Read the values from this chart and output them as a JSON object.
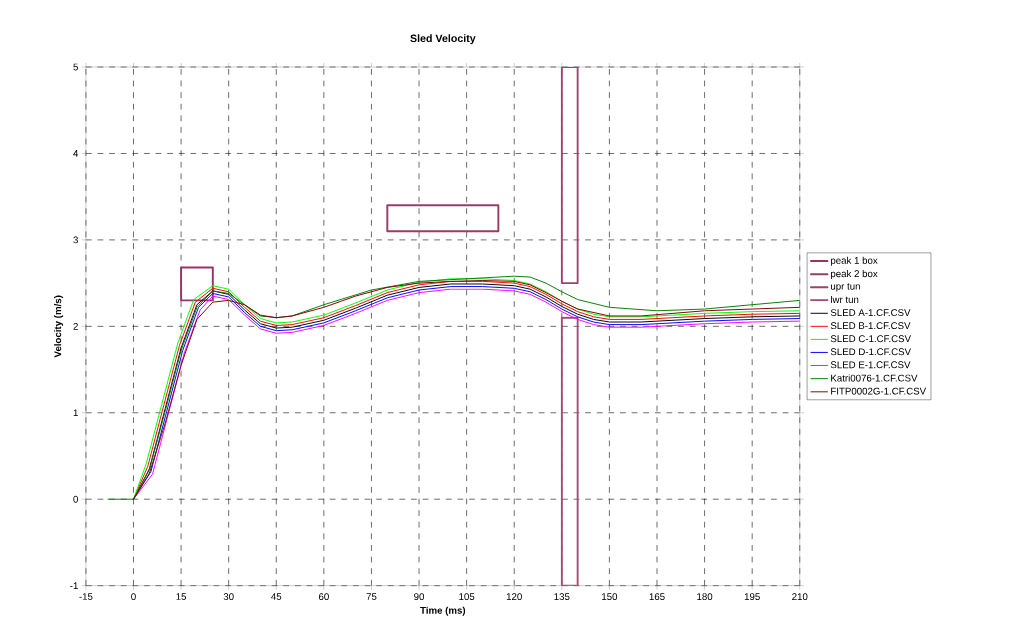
{
  "chart_data": {
    "type": "line",
    "title": "Sled Velocity",
    "xlabel": "Time (ms)",
    "ylabel": "Velocity (m/s)",
    "xlim": [
      -15,
      210
    ],
    "ylim": [
      -1,
      5
    ],
    "xticks": [
      -15,
      0,
      15,
      30,
      45,
      60,
      75,
      90,
      105,
      120,
      135,
      150,
      165,
      180,
      195,
      210
    ],
    "yticks": [
      -1,
      0,
      1,
      2,
      3,
      4,
      5
    ],
    "grid": true,
    "legend": "right",
    "series": [
      {
        "name": "peak 1 box",
        "color": "#993366",
        "x": [
          15,
          25,
          25,
          15,
          15,
          25
        ],
        "values": [
          2.3,
          2.3,
          2.68,
          2.68,
          2.3,
          2.3
        ]
      },
      {
        "name": "peak 2 box",
        "color": "#9c3b6a",
        "x": [
          80,
          115,
          115,
          80,
          80,
          115
        ],
        "values": [
          3.1,
          3.1,
          3.4,
          3.4,
          3.1,
          3.1
        ]
      },
      {
        "name": "upr tun",
        "color": "#a0426e",
        "x": [
          135,
          140,
          140,
          135,
          135,
          140
        ],
        "values": [
          2.5,
          2.5,
          5,
          5,
          2.5,
          2.5
        ]
      },
      {
        "name": "lwr tun",
        "color": "#a34a72",
        "x": [
          135,
          140,
          140,
          135,
          135,
          140
        ],
        "values": [
          -1,
          -1,
          2.1,
          2.1,
          -1,
          -1
        ]
      },
      {
        "name": "SLED A-1.CF.CSV",
        "color": "#000000",
        "x": [
          0,
          5,
          10,
          15,
          20,
          25,
          30,
          35,
          40,
          45,
          50,
          60,
          70,
          80,
          90,
          100,
          110,
          120,
          125,
          130,
          135,
          140,
          145,
          150,
          160,
          170,
          180,
          195,
          210
        ],
        "values": [
          0,
          0.35,
          1.05,
          1.75,
          2.25,
          2.41,
          2.37,
          2.19,
          2.03,
          1.98,
          1.99,
          2.07,
          2.21,
          2.36,
          2.45,
          2.49,
          2.49,
          2.47,
          2.43,
          2.34,
          2.23,
          2.14,
          2.08,
          2.05,
          2.05,
          2.07,
          2.09,
          2.11,
          2.12
        ]
      },
      {
        "name": "SLED B-1.CF.CSV",
        "color": "#ff0000",
        "x": [
          0,
          4.5,
          9.5,
          14.5,
          19.5,
          25,
          30,
          35,
          40,
          45,
          50,
          60,
          70,
          80,
          90,
          100,
          110,
          120,
          125,
          130,
          135,
          140,
          145,
          150,
          160,
          170,
          180,
          195,
          210
        ],
        "values": [
          0,
          0.38,
          1.08,
          1.78,
          2.28,
          2.44,
          2.4,
          2.22,
          2.06,
          2.01,
          2.02,
          2.1,
          2.24,
          2.39,
          2.48,
          2.52,
          2.52,
          2.5,
          2.46,
          2.37,
          2.26,
          2.17,
          2.11,
          2.08,
          2.08,
          2.1,
          2.12,
          2.14,
          2.15
        ]
      },
      {
        "name": "SLED C-1.CF.CSV",
        "color": "#00ff00",
        "x": [
          0,
          4,
          9,
          14,
          19,
          25,
          30,
          35,
          40,
          45,
          50,
          60,
          70,
          80,
          90,
          100,
          110,
          120,
          125,
          130,
          135,
          140,
          145,
          150,
          160,
          170,
          180,
          195,
          210
        ],
        "values": [
          0,
          0.41,
          1.11,
          1.81,
          2.31,
          2.47,
          2.43,
          2.25,
          2.09,
          2.04,
          2.05,
          2.13,
          2.27,
          2.42,
          2.51,
          2.55,
          2.55,
          2.53,
          2.49,
          2.4,
          2.29,
          2.2,
          2.14,
          2.11,
          2.11,
          2.13,
          2.15,
          2.17,
          2.18
        ]
      },
      {
        "name": "SLED D-1.CF.CSV",
        "color": "#0000ff",
        "x": [
          0,
          5.5,
          10.5,
          15.5,
          20.5,
          25,
          30,
          35,
          40,
          45,
          50,
          60,
          70,
          80,
          90,
          100,
          110,
          120,
          125,
          130,
          135,
          140,
          145,
          150,
          160,
          170,
          180,
          195,
          210
        ],
        "values": [
          0,
          0.32,
          1.02,
          1.72,
          2.22,
          2.38,
          2.34,
          2.16,
          2.0,
          1.95,
          1.96,
          2.04,
          2.18,
          2.33,
          2.42,
          2.46,
          2.46,
          2.44,
          2.4,
          2.31,
          2.2,
          2.11,
          2.05,
          2.02,
          2.02,
          2.04,
          2.06,
          2.08,
          2.09
        ]
      },
      {
        "name": "SLED E-1.CF.CSV",
        "color": "#ff00ff",
        "x": [
          0,
          6,
          11,
          16,
          21,
          25,
          30,
          35,
          40,
          45,
          50,
          60,
          70,
          80,
          90,
          100,
          110,
          120,
          125,
          130,
          135,
          140,
          145,
          150,
          160,
          170,
          180,
          195,
          210
        ],
        "values": [
          0,
          0.29,
          0.99,
          1.69,
          2.19,
          2.35,
          2.31,
          2.13,
          1.97,
          1.92,
          1.93,
          2.01,
          2.15,
          2.3,
          2.39,
          2.43,
          2.43,
          2.41,
          2.37,
          2.28,
          2.17,
          2.08,
          2.02,
          1.99,
          1.99,
          2.01,
          2.03,
          2.05,
          2.06
        ]
      },
      {
        "name": "Katri0076-1.CF.CSV",
        "color": "#008000",
        "x": [
          -8,
          -3,
          0,
          5,
          10,
          15,
          20,
          25,
          30,
          35,
          40,
          45,
          50,
          60,
          75,
          90,
          105,
          120,
          125,
          130,
          135,
          140,
          150,
          165,
          180,
          195,
          210
        ],
        "values": [
          0,
          0,
          0,
          0.34,
          1.02,
          1.72,
          2.22,
          2.41,
          2.38,
          2.25,
          2.12,
          2.1,
          2.12,
          2.25,
          2.42,
          2.52,
          2.55,
          2.58,
          2.57,
          2.5,
          2.4,
          2.31,
          2.22,
          2.18,
          2.2,
          2.25,
          2.3
        ]
      },
      {
        "name": "FITP0002G-1.CF.CSV",
        "color": "#800000",
        "x": [
          0,
          5,
          10,
          15,
          20,
          25,
          30,
          35,
          40,
          45,
          50,
          60,
          70,
          80,
          90,
          100,
          110,
          120,
          125,
          130,
          135,
          140,
          150,
          160,
          180,
          195,
          210
        ],
        "values": [
          0,
          0.3,
          0.88,
          1.55,
          2.08,
          2.28,
          2.3,
          2.25,
          2.13,
          2.1,
          2.12,
          2.22,
          2.35,
          2.45,
          2.5,
          2.52,
          2.53,
          2.52,
          2.48,
          2.39,
          2.29,
          2.2,
          2.12,
          2.12,
          2.18,
          2.2,
          2.22
        ]
      }
    ]
  }
}
